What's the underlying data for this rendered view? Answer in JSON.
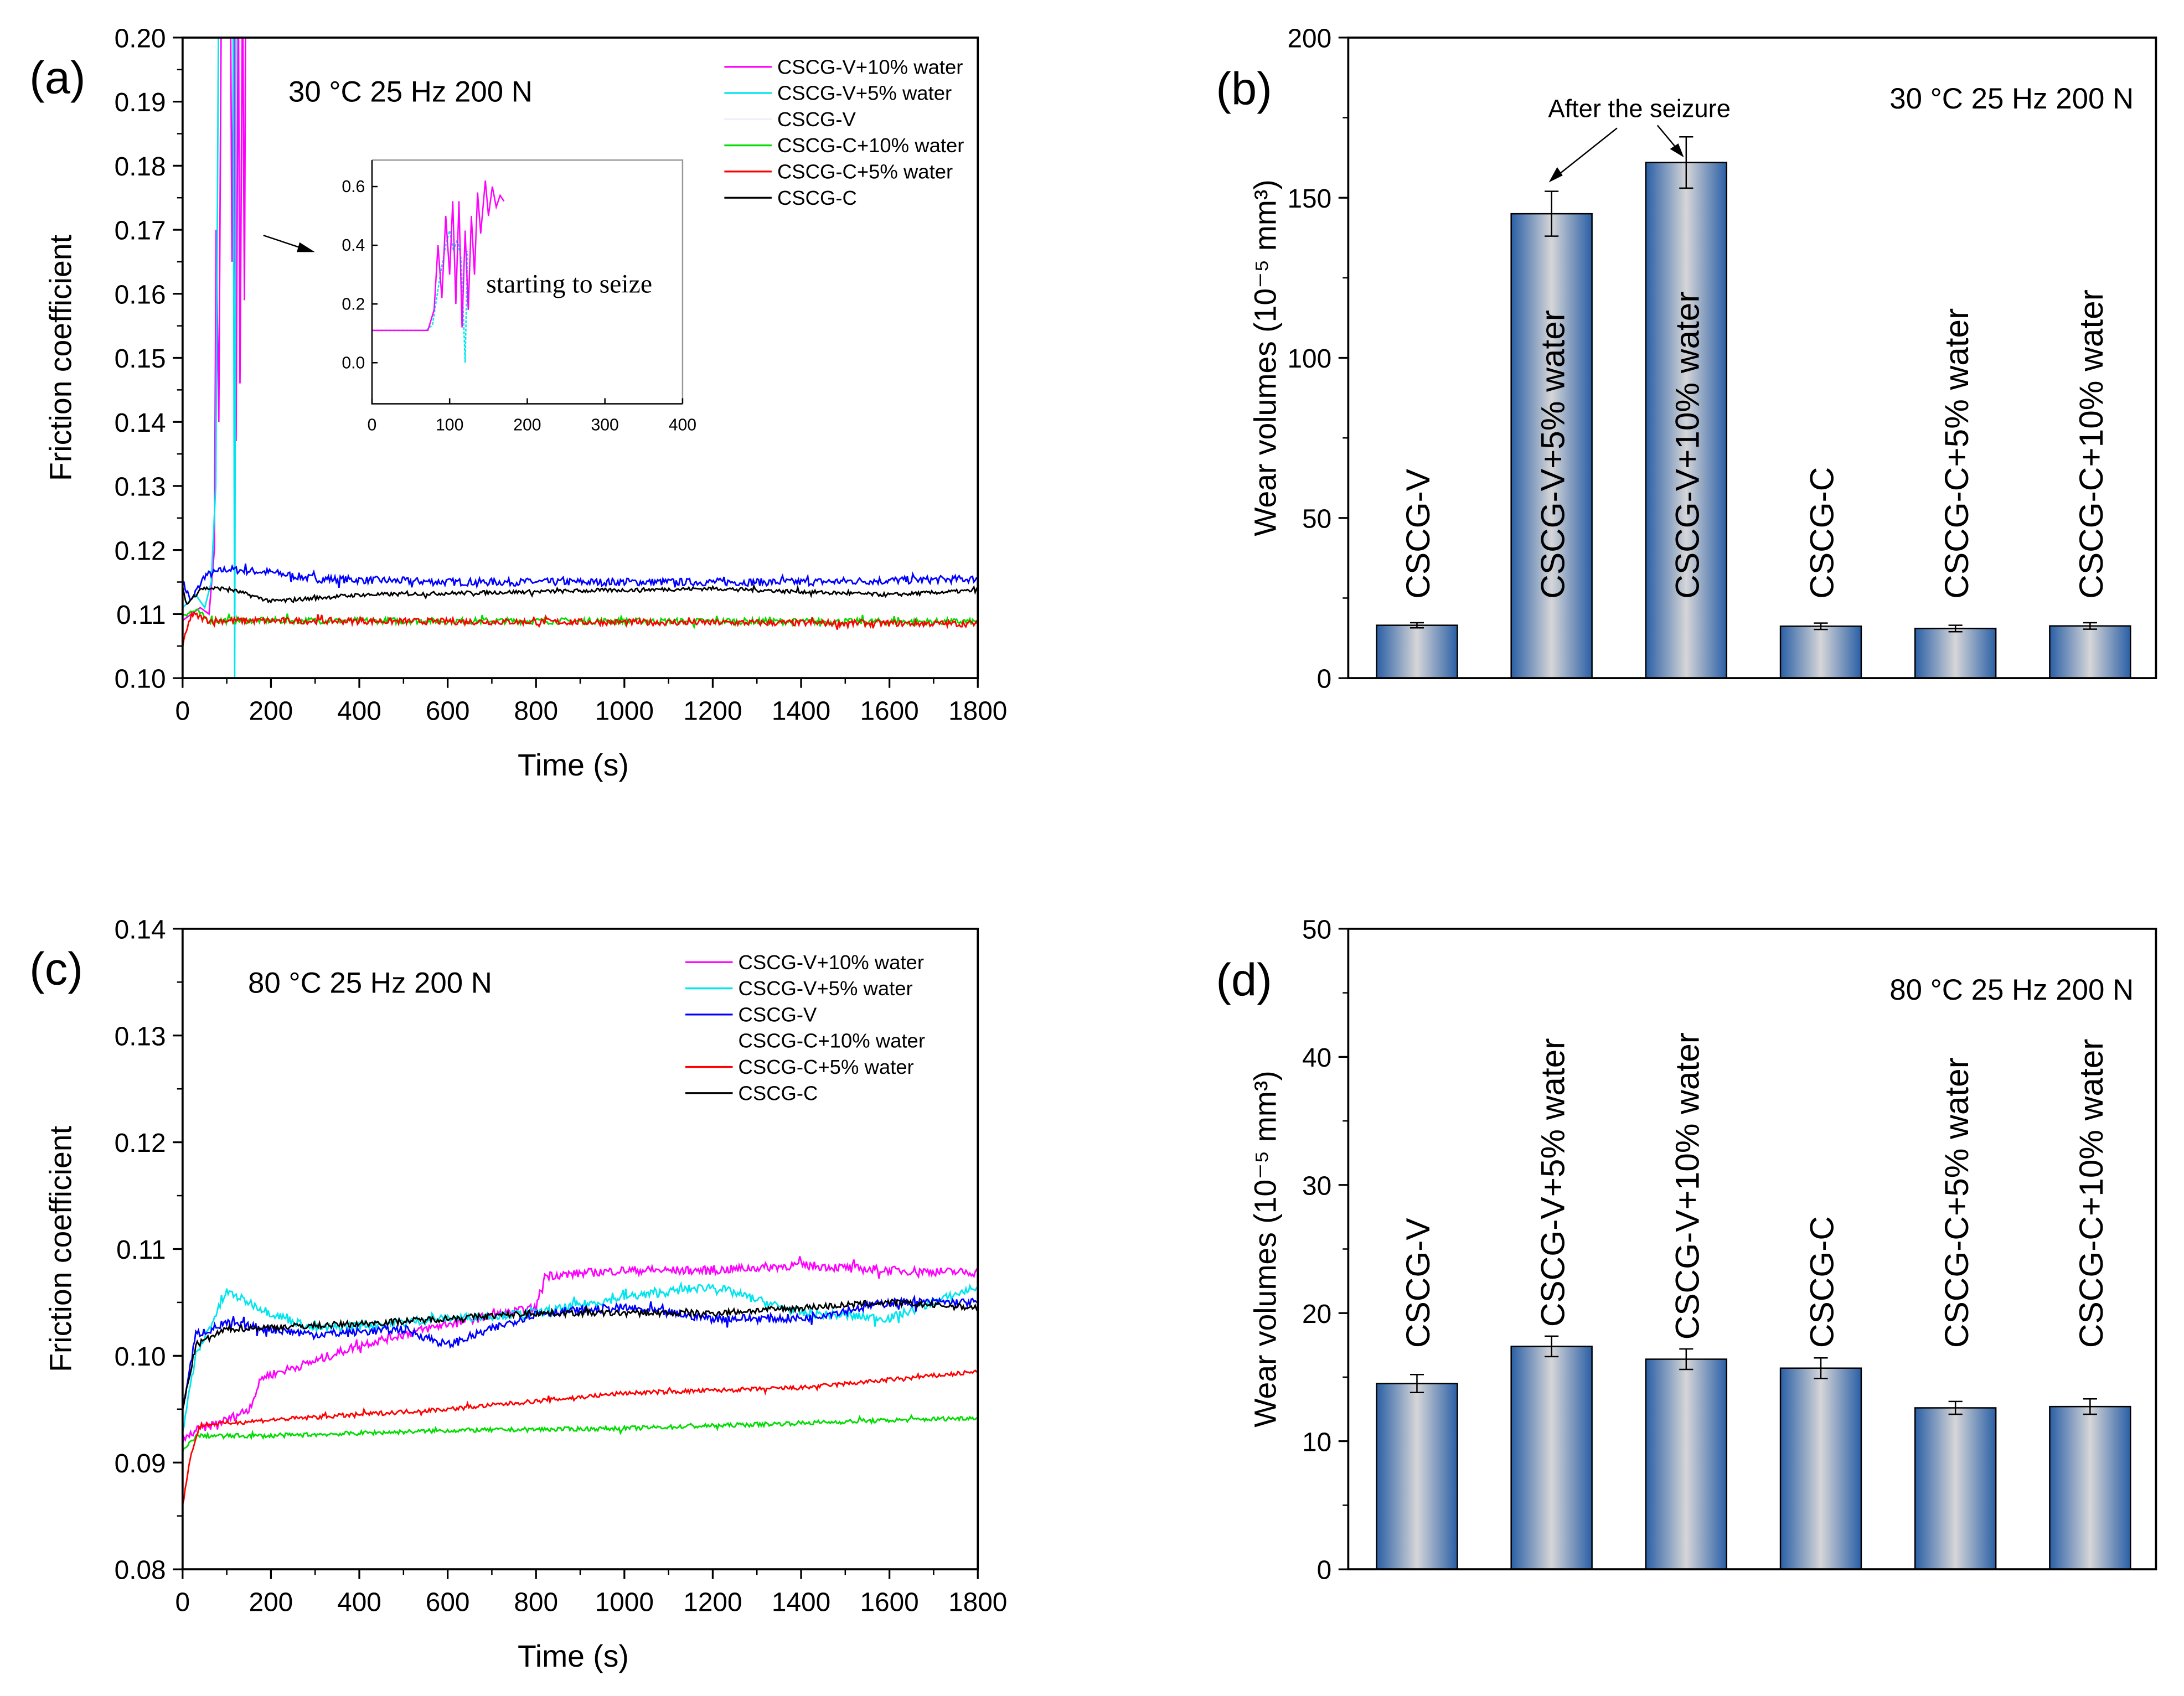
{
  "chart_data": [
    {
      "id": "a",
      "type": "line",
      "panel_label": "(a)",
      "condition": "30 °C 25 Hz 200 N",
      "xlabel": "Time (s)",
      "ylabel": "Friction coefficient",
      "xlim": [
        0,
        1800
      ],
      "ylim": [
        0.1,
        0.2
      ],
      "xticks": [
        "0",
        "200",
        "400",
        "600",
        "800",
        "1000",
        "1200",
        "1400",
        "1600",
        "1800"
      ],
      "yticks": [
        "0.10",
        "0.11",
        "0.12",
        "0.13",
        "0.14",
        "0.15",
        "0.16",
        "0.17",
        "0.18",
        "0.19",
        "0.20"
      ],
      "legend_position": "top-right",
      "series": [
        {
          "name": "CSCG-V+10% water",
          "color": "#ff00ff",
          "legend_color": "#ff00ff",
          "noise": 0.0,
          "points": [
            [
              0,
              0.109
            ],
            [
              40,
              0.111
            ],
            [
              60,
              0.11
            ],
            [
              72,
              0.12
            ],
            [
              76,
              0.17
            ],
            [
              82,
              0.14
            ],
            [
              88,
              0.21
            ],
            [
              108,
              0.21
            ],
            [
              112,
              0.165
            ],
            [
              116,
              0.21
            ],
            [
              121,
              0.137
            ],
            [
              126,
              0.21
            ],
            [
              130,
              0.146
            ],
            [
              136,
              0.21
            ],
            [
              140,
              0.159
            ],
            [
              143,
              0.21
            ]
          ]
        },
        {
          "name": "CSCG-V+5% water",
          "color": "#00e5ee",
          "legend_color": "#00e5ee",
          "noise": 0.0,
          "points": [
            [
              0,
              0.111
            ],
            [
              30,
              0.113
            ],
            [
              50,
              0.111
            ],
            [
              65,
              0.115
            ],
            [
              75,
              0.13
            ],
            [
              82,
              0.21
            ],
            [
              114,
              0.21
            ],
            [
              118,
              0.1
            ],
            [
              121,
              0.21
            ]
          ]
        },
        {
          "name": "CSCG-V",
          "color": "#0000ff",
          "legend_color": "#eeeeff",
          "noise": 0.0006,
          "points": [
            [
              0,
              0.115
            ],
            [
              20,
              0.112
            ],
            [
              50,
              0.116
            ],
            [
              100,
              0.117
            ],
            [
              200,
              0.1165
            ],
            [
              300,
              0.1155
            ],
            [
              600,
              0.115
            ],
            [
              1000,
              0.115
            ],
            [
              1400,
              0.115
            ],
            [
              1800,
              0.1155
            ]
          ]
        },
        {
          "name": "CSCG-C+10% water",
          "color": "#00dd00",
          "legend_color": "#00dd00",
          "noise": 0.0005,
          "points": [
            [
              0,
              0.11
            ],
            [
              30,
              0.1105
            ],
            [
              60,
              0.109
            ],
            [
              1800,
              0.1088
            ]
          ]
        },
        {
          "name": "CSCG-C+5% water",
          "color": "#ff0000",
          "legend_color": "#ff0000",
          "noise": 0.0005,
          "points": [
            [
              0,
              0.105
            ],
            [
              20,
              0.11
            ],
            [
              60,
              0.109
            ],
            [
              1800,
              0.1085
            ]
          ]
        },
        {
          "name": "CSCG-C",
          "color": "#000000",
          "legend_color": "#000000",
          "noise": 0.0003,
          "points": [
            [
              0,
              0.114
            ],
            [
              10,
              0.1115
            ],
            [
              40,
              0.114
            ],
            [
              100,
              0.114
            ],
            [
              200,
              0.112
            ],
            [
              400,
              0.113
            ],
            [
              800,
              0.1135
            ],
            [
              1200,
              0.114
            ],
            [
              1600,
              0.113
            ],
            [
              1800,
              0.1137
            ]
          ]
        }
      ],
      "inset": {
        "xlim": [
          0,
          400
        ],
        "ylim": [
          -0.14,
          0.69
        ],
        "xticks": [
          "0",
          "100",
          "200",
          "300",
          "400"
        ],
        "yticks": [
          "0.0",
          "0.2",
          "0.4",
          "0.6"
        ],
        "annotation": "starting to seize",
        "series": [
          {
            "name": "CSCG-V+5% water",
            "color": "#00e5ee",
            "points": [
              [
                0,
                0.11
              ],
              [
                70,
                0.11
              ],
              [
                78,
                0.13
              ],
              [
                88,
                0.3
              ],
              [
                95,
                0.4
              ],
              [
                100,
                0.45
              ],
              [
                105,
                0.38
              ],
              [
                110,
                0.42
              ],
              [
                115,
                0.35
              ],
              [
                120,
                0.0
              ],
              [
                123,
                0.38
              ]
            ]
          },
          {
            "name": "CSCG-V+10% water",
            "color": "#ff00ff",
            "points": [
              [
                0,
                0.11
              ],
              [
                72,
                0.11
              ],
              [
                80,
                0.18
              ],
              [
                85,
                0.4
              ],
              [
                90,
                0.22
              ],
              [
                95,
                0.5
              ],
              [
                100,
                0.3
              ],
              [
                104,
                0.55
              ],
              [
                108,
                0.2
              ],
              [
                112,
                0.55
              ],
              [
                116,
                0.12
              ],
              [
                120,
                0.45
              ],
              [
                124,
                0.18
              ],
              [
                128,
                0.5
              ],
              [
                132,
                0.3
              ],
              [
                136,
                0.58
              ],
              [
                140,
                0.44
              ],
              [
                146,
                0.62
              ],
              [
                150,
                0.5
              ],
              [
                155,
                0.6
              ],
              [
                160,
                0.53
              ],
              [
                165,
                0.57
              ],
              [
                170,
                0.55
              ]
            ]
          }
        ]
      }
    },
    {
      "id": "b",
      "type": "bar",
      "panel_label": "(b)",
      "condition": "30 °C 25 Hz 200 N",
      "ylabel": "Wear volumes (10⁻⁵ mm³)",
      "ylim": [
        0,
        200
      ],
      "yticks": [
        "0",
        "50",
        "100",
        "150",
        "200"
      ],
      "annotation": "After the seizure",
      "categories": [
        "CSCG-V",
        "CSCG-V+5% water",
        "CSCG-V+10% water",
        "CSCG-C",
        "CSCG-C+5% water",
        "CSCG-C+10% water"
      ],
      "values": [
        16.5,
        145,
        161,
        16.2,
        15.5,
        16.3
      ],
      "errors": [
        0.8,
        7,
        8,
        1,
        1,
        1
      ]
    },
    {
      "id": "c",
      "type": "line",
      "panel_label": "(c)",
      "condition": "80 °C 25 Hz 200 N",
      "xlabel": "Time (s)",
      "ylabel": "Friction coefficient",
      "xlim": [
        0,
        1800
      ],
      "ylim": [
        0.08,
        0.14
      ],
      "xticks": [
        "0",
        "200",
        "400",
        "600",
        "800",
        "1000",
        "1200",
        "1400",
        "1600",
        "1800"
      ],
      "yticks": [
        "0.08",
        "0.09",
        "0.10",
        "0.11",
        "0.12",
        "0.13",
        "0.14"
      ],
      "legend_position": "top-right",
      "series": [
        {
          "name": "CSCG-V+10% water",
          "color": "#ff00ff",
          "legend_color": "#ff00ff",
          "noise": 0.0004,
          "points": [
            [
              0,
              0.092
            ],
            [
              30,
              0.093
            ],
            [
              100,
              0.094
            ],
            [
              150,
              0.095
            ],
            [
              180,
              0.098
            ],
            [
              300,
              0.0995
            ],
            [
              400,
              0.101
            ],
            [
              600,
              0.103
            ],
            [
              800,
              0.1045
            ],
            [
              820,
              0.1075
            ],
            [
              1000,
              0.108
            ],
            [
              1200,
              0.108
            ],
            [
              1400,
              0.1085
            ],
            [
              1600,
              0.108
            ],
            [
              1800,
              0.1078
            ]
          ]
        },
        {
          "name": "CSCG-V+5% water",
          "color": "#00e5ee",
          "legend_color": "#00e5ee",
          "noise": 0.0004,
          "points": [
            [
              0,
              0.093
            ],
            [
              30,
              0.1
            ],
            [
              100,
              0.106
            ],
            [
              200,
              0.104
            ],
            [
              300,
              0.1025
            ],
            [
              600,
              0.1035
            ],
            [
              800,
              0.104
            ],
            [
              1000,
              0.1055
            ],
            [
              1200,
              0.1065
            ],
            [
              1400,
              0.104
            ],
            [
              1600,
              0.1035
            ],
            [
              1800,
              0.1065
            ]
          ]
        },
        {
          "name": "CSCG-V",
          "color": "#0000ff",
          "legend_color": "#0000ff",
          "noise": 0.0004,
          "points": [
            [
              0,
              0.095
            ],
            [
              30,
              0.102
            ],
            [
              100,
              0.103
            ],
            [
              300,
              0.102
            ],
            [
              500,
              0.1025
            ],
            [
              600,
              0.101
            ],
            [
              800,
              0.104
            ],
            [
              1000,
              0.1045
            ],
            [
              1200,
              0.1035
            ],
            [
              1400,
              0.1035
            ],
            [
              1600,
              0.105
            ],
            [
              1800,
              0.105
            ]
          ]
        },
        {
          "name": "CSCG-C+10% water",
          "color": "#00dd00",
          "legend_color": "#ffffff",
          "noise": 0.0002,
          "points": [
            [
              0,
              0.091
            ],
            [
              30,
              0.0925
            ],
            [
              200,
              0.0925
            ],
            [
              600,
              0.093
            ],
            [
              1000,
              0.0932
            ],
            [
              1400,
              0.0937
            ],
            [
              1800,
              0.0942
            ]
          ]
        },
        {
          "name": "CSCG-C+5% water",
          "color": "#ff0000",
          "legend_color": "#ff0000",
          "noise": 0.0002,
          "points": [
            [
              0,
              0.086
            ],
            [
              20,
              0.091
            ],
            [
              40,
              0.0935
            ],
            [
              200,
              0.094
            ],
            [
              600,
              0.095
            ],
            [
              1000,
              0.0965
            ],
            [
              1400,
              0.097
            ],
            [
              1800,
              0.0985
            ]
          ]
        },
        {
          "name": "CSCG-C",
          "color": "#000000",
          "legend_color": "#000000",
          "noise": 0.0003,
          "points": [
            [
              0,
              0.095
            ],
            [
              30,
              0.101
            ],
            [
              100,
              0.1025
            ],
            [
              400,
              0.103
            ],
            [
              800,
              0.104
            ],
            [
              1200,
              0.104
            ],
            [
              1600,
              0.105
            ],
            [
              1800,
              0.1045
            ]
          ]
        }
      ]
    },
    {
      "id": "d",
      "type": "bar",
      "panel_label": "(d)",
      "condition": "80 °C 25 Hz 200 N",
      "ylabel": "Wear volumes (10⁻⁵ mm³)",
      "ylim": [
        0,
        50
      ],
      "yticks": [
        "0",
        "10",
        "20",
        "30",
        "40",
        "50"
      ],
      "categories": [
        "CSCG-V",
        "CSCG-V+5% water",
        "CSCG-V+10% water",
        "CSCG-C",
        "CSCG-C+5% water",
        "CSCG-C+10% water"
      ],
      "values": [
        14.5,
        17.4,
        16.4,
        15.7,
        12.6,
        12.7
      ],
      "errors": [
        0.7,
        0.8,
        0.8,
        0.8,
        0.5,
        0.6
      ]
    }
  ]
}
